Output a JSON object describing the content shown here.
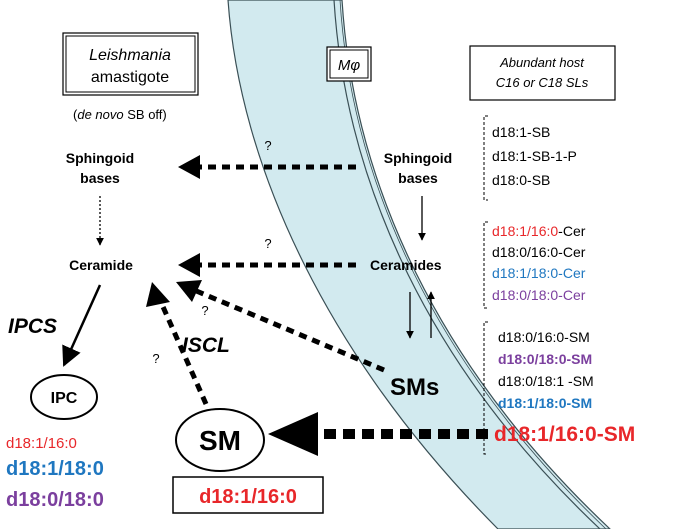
{
  "colors": {
    "black": "#000000",
    "red": "#e8272a",
    "blue": "#1f77c0",
    "purple": "#7b3f9e",
    "membrane_fill": "#d2eaef",
    "membrane_stroke": "#3a4f55"
  },
  "parasite": {
    "name": "Leishmania",
    "stage": "amastigote",
    "note_italic": "de novo",
    "note_mid": " SB ",
    "note_end": "off",
    "sphingoid": [
      "Sphingoid",
      "bases"
    ],
    "ceramide": "Ceramide",
    "ipcs": "IPCS",
    "iscl": "ISCL",
    "ipc": "IPC",
    "sm": "SM",
    "ipc_species": [
      {
        "text": "d18:1/16:0",
        "color": "red"
      },
      {
        "text": "d18:1/18:0",
        "color": "blue"
      },
      {
        "text": "d18:0/18:0",
        "color": "purple"
      }
    ],
    "sm_species": "d18:1/16:0"
  },
  "macrophage": {
    "label": "Mφ",
    "abundant": [
      "Abundant host",
      "C16 or C18 SLs"
    ],
    "sphingoid": [
      "Sphingoid",
      "bases"
    ],
    "ceramides": "Ceramides",
    "sms": "SMs"
  },
  "host_sb": [
    "d18:1-SB",
    "d18:1-SB-1-P",
    "d18:0-SB"
  ],
  "host_cer": [
    {
      "text": "d18:1/16:0",
      "suffix": "-Cer",
      "color": "red"
    },
    {
      "text": "d18:0/16:0-Cer",
      "suffix": "",
      "color": "black"
    },
    {
      "text": "d18:1/18:0-Cer",
      "suffix": "",
      "color": "blue"
    },
    {
      "text": "d18:0/18:0-Cer",
      "suffix": "",
      "color": "purple"
    }
  ],
  "host_sm": [
    {
      "text": "d18:0/16:0-SM",
      "color": "black",
      "bold": false
    },
    {
      "text": "d18:0/18:0-SM",
      "color": "purple",
      "bold": true
    },
    {
      "text": "d18:0/18:1 -SM",
      "color": "black",
      "bold": false
    },
    {
      "text": "d18:1/18:0-SM",
      "color": "blue",
      "bold": true
    }
  ],
  "host_sm_main": "d18:1/16:0-SM",
  "question": "?"
}
